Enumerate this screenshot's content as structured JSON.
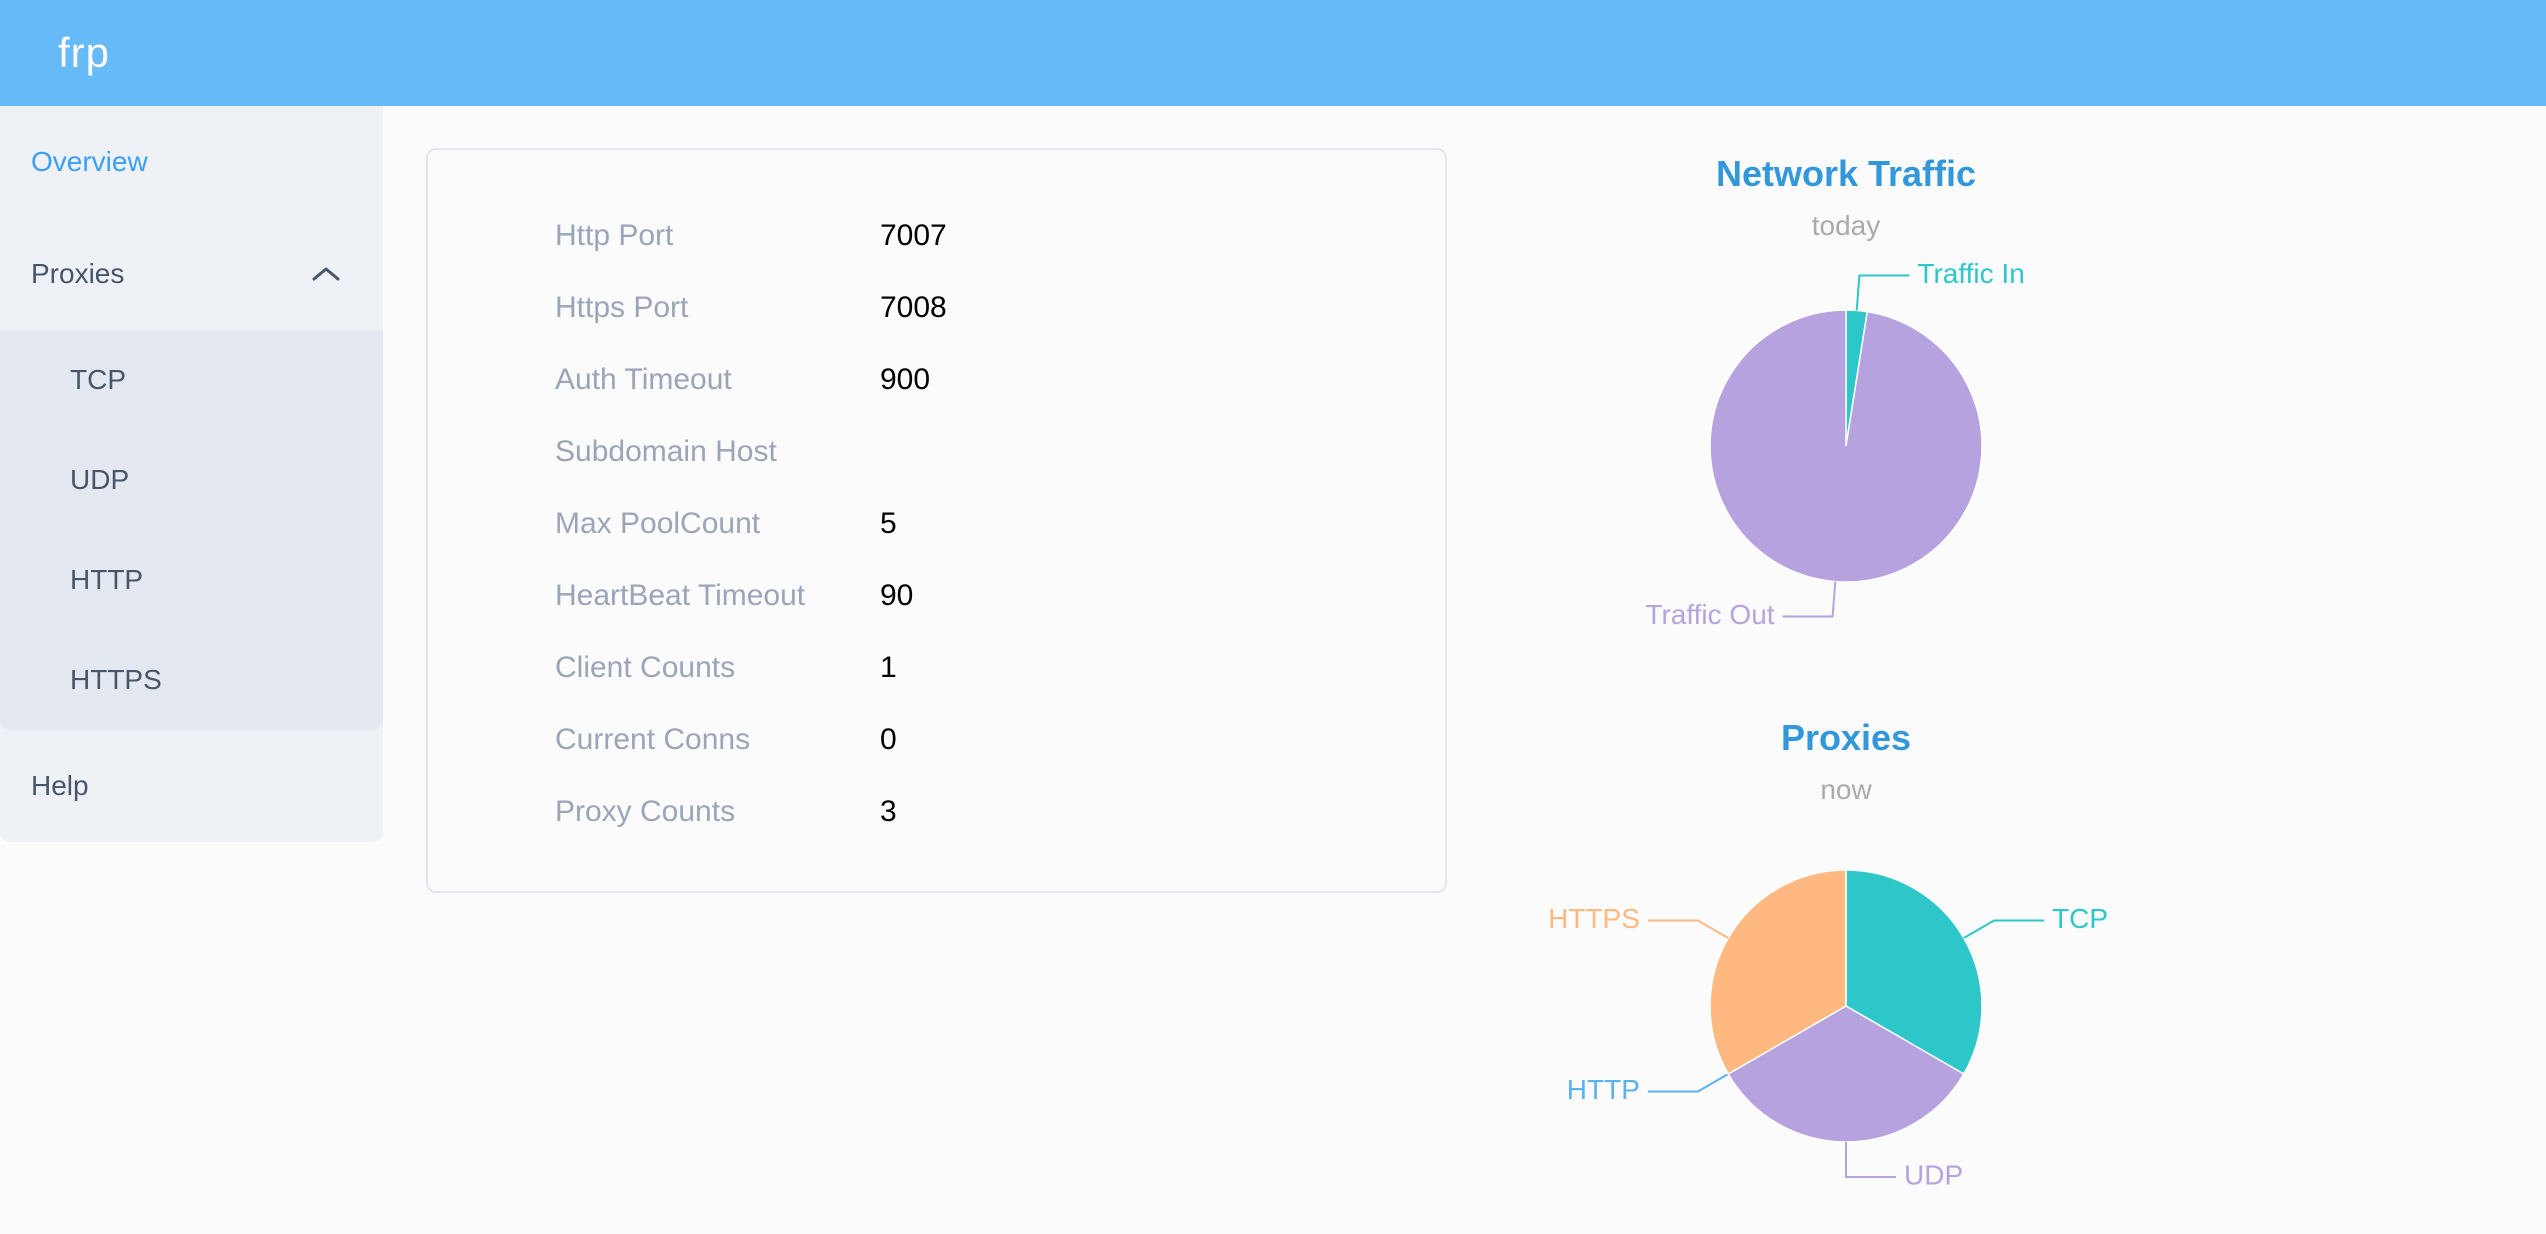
{
  "app": {
    "logo_text": "frp"
  },
  "sidebar": {
    "items": [
      {
        "label": "Overview",
        "active": true
      },
      {
        "label": "Proxies",
        "expanded": true,
        "children": [
          {
            "label": "TCP"
          },
          {
            "label": "UDP"
          },
          {
            "label": "HTTP"
          },
          {
            "label": "HTTPS"
          }
        ]
      },
      {
        "label": "Help",
        "active": false
      }
    ]
  },
  "server_info": {
    "rows": [
      {
        "label": "Http Port",
        "value": "7007"
      },
      {
        "label": "Https Port",
        "value": "7008"
      },
      {
        "label": "Auth Timeout",
        "value": "900"
      },
      {
        "label": "Subdomain Host",
        "value": ""
      },
      {
        "label": "Max PoolCount",
        "value": "5"
      },
      {
        "label": "HeartBeat Timeout",
        "value": "90"
      },
      {
        "label": "Client Counts",
        "value": "1"
      },
      {
        "label": "Current Conns",
        "value": "0"
      },
      {
        "label": "Proxy Counts",
        "value": "3"
      }
    ]
  },
  "chart_data": [
    {
      "type": "pie",
      "title": "Network Traffic",
      "subtitle": "today",
      "legend_position": "none",
      "labels": "outside with leader lines",
      "start_angle_deg": 0,
      "clockwise": true,
      "note": "slice values estimated from drawn angles, in percent",
      "series": [
        {
          "name": "Traffic In",
          "value": 2.5,
          "color": "#2ec7c9"
        },
        {
          "name": "Traffic Out",
          "value": 97.5,
          "color": "#b6a2de"
        }
      ]
    },
    {
      "type": "pie",
      "title": "Proxies",
      "subtitle": "now",
      "legend_position": "none",
      "labels": "outside with leader lines",
      "start_angle_deg": 0,
      "clockwise": true,
      "series": [
        {
          "name": "TCP",
          "value": 1,
          "color": "#2ec7c9"
        },
        {
          "name": "UDP",
          "value": 1,
          "color": "#b6a2de"
        },
        {
          "name": "HTTP",
          "value": 0,
          "color": "#5ab1ef"
        },
        {
          "name": "HTTPS",
          "value": 1,
          "color": "#ffb980"
        }
      ]
    }
  ],
  "colors": {
    "header_bg": "#66baf7",
    "sidebar_bg": "#eef1f6",
    "submenu_bg": "#e4e8f1",
    "sidebar_active_text": "#3a9ff8",
    "sidebar_text": "#475669",
    "page_bg": "#fbfbfb",
    "card_border": "#e1e6f5",
    "table_label": "#9aa5b8",
    "table_value": "#000000",
    "chart_title": "#3398db",
    "chart_subtitle": "#aaaaaa"
  }
}
